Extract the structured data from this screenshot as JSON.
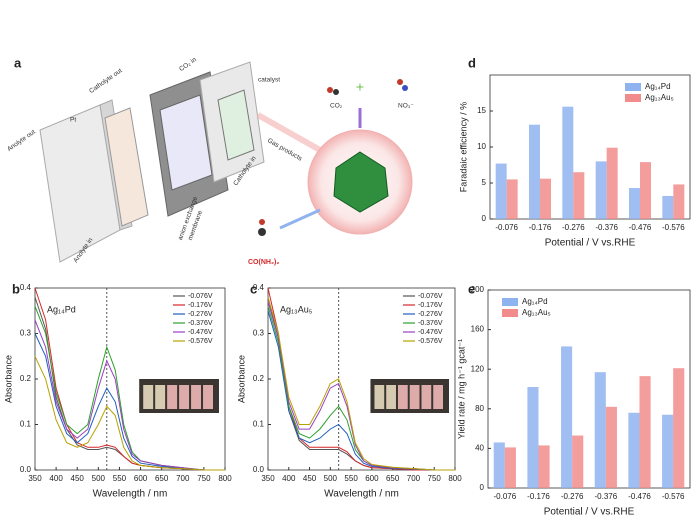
{
  "diagram": {
    "panel": "a",
    "labels": {
      "anolyte_out": "Anolyte out",
      "pt": "Pt",
      "catholyte_out": "Catholyte out",
      "co2_in": "CO₂ in",
      "catalyst": "catalyst",
      "gas_products": "Gas products",
      "catholyte_in": "Catholyte in",
      "membrane": [
        "anion exchange",
        "membrane"
      ],
      "anolyte_in": "Anolyte in",
      "co2": "CO₂",
      "plus": "+",
      "no3": "NO₃⁻",
      "urea": "CO(NH₂)₂"
    }
  },
  "chart_data": [
    {
      "type": "line",
      "panel": "b",
      "label": "Ag₁₄Pd",
      "x_label": "Wavelength / nm",
      "y_label": "Absorbance",
      "x": [
        350,
        375,
        400,
        425,
        450,
        475,
        500,
        520,
        540,
        560,
        580,
        600,
        650,
        700,
        750,
        800
      ],
      "xlim": [
        350,
        800
      ],
      "xticks": [
        350,
        400,
        450,
        500,
        550,
        600,
        650,
        700,
        750,
        800
      ],
      "ylim": [
        0,
        0.4
      ],
      "yticks": [
        {
          "value": 0,
          "label": "0.0"
        },
        0.1,
        0.2,
        0.3,
        0.4
      ],
      "vline": 520,
      "legend": "upper right",
      "series": [
        {
          "name": "-0.076V",
          "color": "#555555",
          "values": [
            0.38,
            0.31,
            0.16,
            0.09,
            0.055,
            0.045,
            0.045,
            0.05,
            0.045,
            0.03,
            0.015,
            0.01,
            0.005,
            0.003,
            0,
            0
          ]
        },
        {
          "name": "-0.176V",
          "color": "#d62728",
          "values": [
            0.4,
            0.33,
            0.18,
            0.1,
            0.06,
            0.05,
            0.05,
            0.055,
            0.05,
            0.03,
            0.015,
            0.01,
            0.005,
            0.003,
            0,
            0
          ]
        },
        {
          "name": "-0.276V",
          "color": "#1f5fbf",
          "values": [
            0.3,
            0.25,
            0.14,
            0.08,
            0.06,
            0.08,
            0.14,
            0.18,
            0.15,
            0.07,
            0.03,
            0.015,
            0.008,
            0.004,
            0,
            0
          ]
        },
        {
          "name": "-0.376V",
          "color": "#2ca02c",
          "values": [
            0.36,
            0.3,
            0.17,
            0.1,
            0.08,
            0.1,
            0.2,
            0.27,
            0.22,
            0.1,
            0.04,
            0.02,
            0.01,
            0.005,
            0,
            0
          ]
        },
        {
          "name": "-0.476V",
          "color": "#9b3fc4",
          "values": [
            0.33,
            0.27,
            0.15,
            0.09,
            0.07,
            0.09,
            0.18,
            0.24,
            0.2,
            0.09,
            0.035,
            0.02,
            0.01,
            0.005,
            0,
            0
          ]
        },
        {
          "name": "-0.576V",
          "color": "#b8a200",
          "values": [
            0.25,
            0.2,
            0.11,
            0.06,
            0.05,
            0.06,
            0.1,
            0.14,
            0.12,
            0.05,
            0.02,
            0.01,
            0.005,
            0.003,
            0,
            0
          ]
        }
      ]
    },
    {
      "type": "line",
      "panel": "c",
      "label": "Ag₁₃Au₅",
      "x_label": "Wavelength / nm",
      "y_label": "Absorbance",
      "x": [
        350,
        375,
        400,
        425,
        450,
        475,
        500,
        520,
        540,
        560,
        580,
        600,
        650,
        700,
        750,
        800
      ],
      "xlim": [
        350,
        800
      ],
      "xticks": [
        350,
        400,
        450,
        500,
        550,
        600,
        650,
        700,
        750,
        800
      ],
      "ylim": [
        0,
        0.4
      ],
      "yticks": [
        {
          "value": 0,
          "label": "0.0"
        },
        0.1,
        0.2,
        0.3,
        0.4
      ],
      "vline": 520,
      "legend": "upper right",
      "series": [
        {
          "name": "-0.076V",
          "color": "#555555",
          "values": [
            0.38,
            0.29,
            0.13,
            0.065,
            0.045,
            0.045,
            0.045,
            0.045,
            0.035,
            0.02,
            0.01,
            0.005,
            0.003,
            0,
            0,
            0
          ]
        },
        {
          "name": "-0.176V",
          "color": "#d62728",
          "values": [
            0.4,
            0.3,
            0.14,
            0.07,
            0.05,
            0.05,
            0.05,
            0.05,
            0.04,
            0.02,
            0.01,
            0.005,
            0.003,
            0,
            0,
            0
          ]
        },
        {
          "name": "-0.276V",
          "color": "#1f5fbf",
          "values": [
            0.35,
            0.27,
            0.13,
            0.07,
            0.06,
            0.07,
            0.09,
            0.1,
            0.08,
            0.035,
            0.015,
            0.008,
            0.004,
            0.002,
            0,
            0
          ]
        },
        {
          "name": "-0.376V",
          "color": "#2ca02c",
          "values": [
            0.36,
            0.28,
            0.14,
            0.08,
            0.07,
            0.09,
            0.12,
            0.14,
            0.11,
            0.045,
            0.02,
            0.01,
            0.005,
            0.003,
            0,
            0
          ]
        },
        {
          "name": "-0.476V",
          "color": "#9b3fc4",
          "values": [
            0.37,
            0.29,
            0.15,
            0.09,
            0.09,
            0.13,
            0.18,
            0.19,
            0.14,
            0.055,
            0.02,
            0.01,
            0.005,
            0.003,
            0,
            0
          ]
        },
        {
          "name": "-0.576V",
          "color": "#b8a200",
          "values": [
            0.38,
            0.3,
            0.16,
            0.1,
            0.1,
            0.14,
            0.19,
            0.2,
            0.15,
            0.06,
            0.025,
            0.012,
            0.006,
            0.003,
            0,
            0
          ]
        }
      ]
    },
    {
      "type": "bar",
      "panel": "d",
      "x_label": "Potential /  V vs.RHE",
      "y_label": "Faradaic efficiency / %",
      "categories": [
        "-0.076",
        "-0.176",
        "-0.276",
        "-0.376",
        "-0.476",
        "-0.576"
      ],
      "ylim": [
        0,
        20
      ],
      "yticks": [
        0,
        5,
        10,
        15
      ],
      "legend": "upper right",
      "series": [
        {
          "name": "Ag₁₄Pd",
          "color": "#8fb3ee",
          "values": [
            7.7,
            13.1,
            15.6,
            8.0,
            4.3,
            3.2
          ]
        },
        {
          "name": "Ag₁₃Au₅",
          "color": "#f28c8c",
          "values": [
            5.5,
            5.6,
            6.5,
            9.9,
            7.9,
            4.8
          ]
        }
      ]
    },
    {
      "type": "bar",
      "panel": "e",
      "x_label": "Potential / V vs.RHE",
      "y_label": "Yield rate / mg h⁻¹ gcat⁻¹",
      "categories": [
        "-0.076",
        "-0.176",
        "-0.276",
        "-0.376",
        "-0.476",
        "-0.576"
      ],
      "ylim": [
        0,
        200
      ],
      "yticks": [
        0,
        40,
        80,
        120,
        160,
        200
      ],
      "legend": "upper left",
      "series": [
        {
          "name": "Ag₁₄Pd",
          "color": "#8fb3ee",
          "values": [
            46,
            102,
            143,
            117,
            76,
            74
          ]
        },
        {
          "name": "Ag₁₃Au₅",
          "color": "#f28c8c",
          "values": [
            41,
            43,
            53,
            82,
            113,
            121
          ]
        }
      ]
    }
  ]
}
